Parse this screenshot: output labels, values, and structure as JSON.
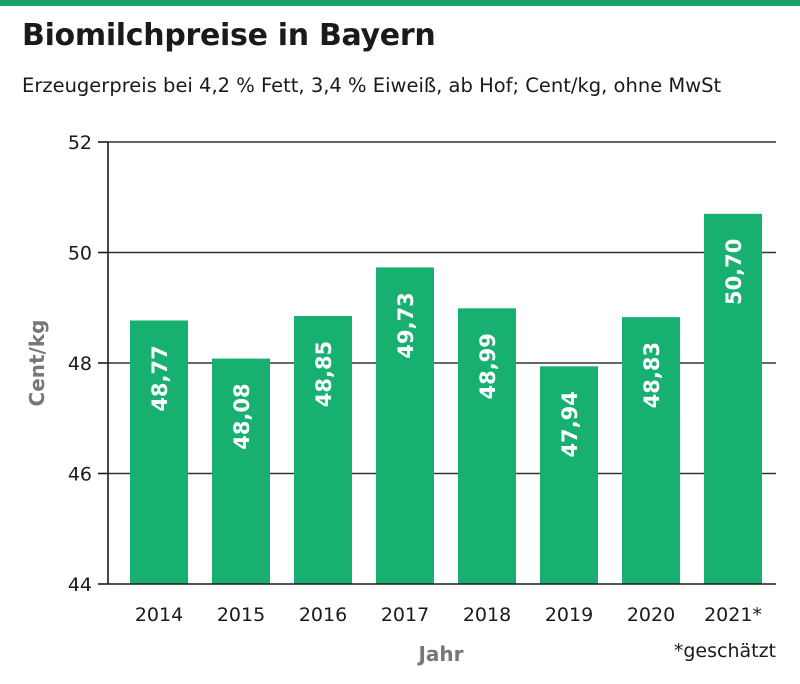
{
  "colors": {
    "bar": "#18b071",
    "accent": "#18a266",
    "label": "#ffffff",
    "axis": "#1a1a1a",
    "muted": "#777777"
  },
  "header": {
    "title": "Biomilchpreise in Bayern",
    "subtitle": "Erzeugerpreis bei 4,2 % Fett, 3,4 % Eiweiß, ab Hof; Cent/kg, ohne MwSt"
  },
  "footnote": "*geschätzt",
  "chart_data": {
    "type": "bar",
    "title": "Biomilchpreise in Bayern",
    "subtitle": "Erzeugerpreis bei 4,2 % Fett, 3,4 % Eiweiß, ab Hof; Cent/kg, ohne MwSt",
    "xlabel": "Jahr",
    "ylabel": "Cent/kg",
    "categories": [
      "2014",
      "2015",
      "2016",
      "2017",
      "2018",
      "2019",
      "2020",
      "2021*"
    ],
    "values": [
      48.77,
      48.08,
      48.85,
      49.73,
      48.99,
      47.94,
      48.83,
      50.7
    ],
    "value_labels": [
      "48,77",
      "48,08",
      "48,85",
      "49,73",
      "48,99",
      "47,94",
      "48,83",
      "50,70"
    ],
    "ylim": [
      44,
      52
    ],
    "yticks": [
      44,
      46,
      48,
      50,
      52
    ],
    "grid": true,
    "legend": "none"
  }
}
